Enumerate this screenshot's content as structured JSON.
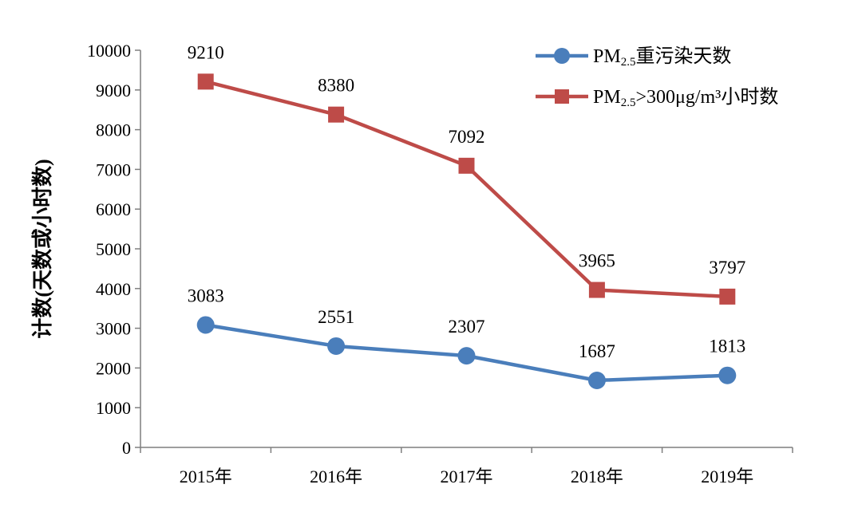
{
  "chart_data": {
    "type": "line",
    "categories": [
      "2015年",
      "2016年",
      "2017年",
      "2018年",
      "2019年"
    ],
    "ylabel": "计数(天数或小时数)",
    "xlabel": "",
    "ylim": [
      0,
      10000
    ],
    "yticks": [
      0,
      1000,
      2000,
      3000,
      4000,
      5000,
      6000,
      7000,
      8000,
      9000,
      10000
    ],
    "grid": false,
    "legend_position": "top-right",
    "series": [
      {
        "name": "PM2.5重污染天数",
        "legend_prefix": "PM",
        "legend_sub": "2.5",
        "legend_suffix": "重污染天数",
        "values": [
          3083,
          2551,
          2307,
          1687,
          1813
        ],
        "color": "#4a7ebb",
        "marker": "circle"
      },
      {
        "name": "PM2.5>300μg/m³小时数",
        "legend_prefix": "PM",
        "legend_sub": "2.5",
        "legend_suffix": ">300μg/m³小时数",
        "values": [
          9210,
          8380,
          7092,
          3965,
          3797
        ],
        "color": "#be4b48",
        "marker": "square"
      }
    ]
  }
}
